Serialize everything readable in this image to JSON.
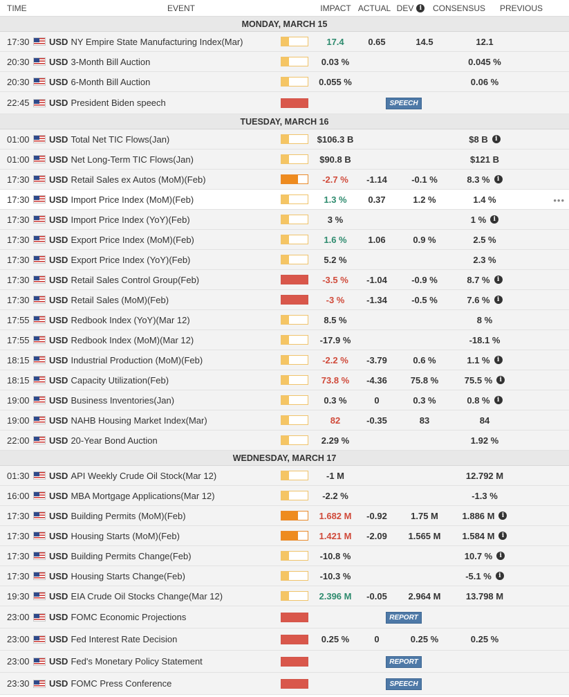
{
  "header": {
    "time": "TIME",
    "event": "EVENT",
    "impact": "IMPACT",
    "actual": "ACTUAL",
    "dev": "DEV",
    "consensus": "CONSENSUS",
    "previous": "PREVIOUS"
  },
  "days": [
    {
      "label": "MONDAY, MARCH 15"
    },
    {
      "label": "TUESDAY, MARCH 16"
    },
    {
      "label": "WEDNESDAY, MARCH 17"
    }
  ],
  "rows": [
    {
      "time": "17:30",
      "cur": "USD",
      "event": "NY Empire State Manufacturing Index(Mar)",
      "impact": "low",
      "actual": "17.4",
      "actual_tone": "pos",
      "dev": "0.65",
      "consensus": "14.5",
      "previous": "12.1",
      "prev_info": false
    },
    {
      "time": "20:30",
      "cur": "USD",
      "event": "3-Month Bill Auction",
      "impact": "low",
      "actual": "0.03 %",
      "actual_tone": "neutral",
      "dev": "",
      "consensus": "",
      "previous": "0.045 %",
      "prev_info": false
    },
    {
      "time": "20:30",
      "cur": "USD",
      "event": "6-Month Bill Auction",
      "impact": "low",
      "actual": "0.055 %",
      "actual_tone": "neutral",
      "dev": "",
      "consensus": "",
      "previous": "0.06 %",
      "prev_info": false
    },
    {
      "time": "22:45",
      "cur": "USD",
      "event": "President Biden speech",
      "impact": "high",
      "tag": "SPEECH"
    },
    {
      "time": "01:00",
      "cur": "USD",
      "event": "Total Net TIC Flows(Jan)",
      "impact": "low",
      "actual": "$106.3 B",
      "actual_tone": "neutral",
      "dev": "",
      "consensus": "",
      "previous": "$8 B",
      "prev_info": true
    },
    {
      "time": "01:00",
      "cur": "USD",
      "event": "Net Long-Term TIC Flows(Jan)",
      "impact": "low",
      "actual": "$90.8 B",
      "actual_tone": "neutral",
      "dev": "",
      "consensus": "",
      "previous": "$121 B",
      "prev_info": false
    },
    {
      "time": "17:30",
      "cur": "USD",
      "event": "Retail Sales ex Autos (MoM)(Feb)",
      "impact": "med",
      "actual": "-2.7 %",
      "actual_tone": "neg",
      "dev": "-1.14",
      "consensus": "-0.1 %",
      "previous": "8.3 %",
      "prev_info": true
    },
    {
      "time": "17:30",
      "cur": "USD",
      "event": "Import Price Index (MoM)(Feb)",
      "impact": "low",
      "actual": "1.3 %",
      "actual_tone": "pos",
      "dev": "0.37",
      "consensus": "1.2 %",
      "previous": "1.4 %",
      "prev_info": false,
      "highlight": true,
      "more": "•••"
    },
    {
      "time": "17:30",
      "cur": "USD",
      "event": "Import Price Index (YoY)(Feb)",
      "impact": "low",
      "actual": "3 %",
      "actual_tone": "neutral",
      "dev": "",
      "consensus": "",
      "previous": "1 %",
      "prev_info": true
    },
    {
      "time": "17:30",
      "cur": "USD",
      "event": "Export Price Index (MoM)(Feb)",
      "impact": "low",
      "actual": "1.6 %",
      "actual_tone": "pos",
      "dev": "1.06",
      "consensus": "0.9 %",
      "previous": "2.5 %",
      "prev_info": false
    },
    {
      "time": "17:30",
      "cur": "USD",
      "event": "Export Price Index (YoY)(Feb)",
      "impact": "low",
      "actual": "5.2 %",
      "actual_tone": "neutral",
      "dev": "",
      "consensus": "",
      "previous": "2.3 %",
      "prev_info": false
    },
    {
      "time": "17:30",
      "cur": "USD",
      "event": "Retail Sales Control Group(Feb)",
      "impact": "high",
      "actual": "-3.5 %",
      "actual_tone": "neg",
      "dev": "-1.04",
      "consensus": "-0.9 %",
      "previous": "8.7 %",
      "prev_info": true
    },
    {
      "time": "17:30",
      "cur": "USD",
      "event": "Retail Sales (MoM)(Feb)",
      "impact": "high",
      "actual": "-3 %",
      "actual_tone": "neg",
      "dev": "-1.34",
      "consensus": "-0.5 %",
      "previous": "7.6 %",
      "prev_info": true
    },
    {
      "time": "17:55",
      "cur": "USD",
      "event": "Redbook Index (YoY)(Mar 12)",
      "impact": "low",
      "actual": "8.5 %",
      "actual_tone": "neutral",
      "dev": "",
      "consensus": "",
      "previous": "8 %",
      "prev_info": false
    },
    {
      "time": "17:55",
      "cur": "USD",
      "event": "Redbook Index (MoM)(Mar 12)",
      "impact": "low",
      "actual": "-17.9 %",
      "actual_tone": "neutral",
      "dev": "",
      "consensus": "",
      "previous": "-18.1 %",
      "prev_info": false
    },
    {
      "time": "18:15",
      "cur": "USD",
      "event": "Industrial Production (MoM)(Feb)",
      "impact": "low",
      "actual": "-2.2 %",
      "actual_tone": "neg",
      "dev": "-3.79",
      "consensus": "0.6 %",
      "previous": "1.1 %",
      "prev_info": true
    },
    {
      "time": "18:15",
      "cur": "USD",
      "event": "Capacity Utilization(Feb)",
      "impact": "low",
      "actual": "73.8 %",
      "actual_tone": "neg",
      "dev": "-4.36",
      "consensus": "75.8 %",
      "previous": "75.5 %",
      "prev_info": true
    },
    {
      "time": "19:00",
      "cur": "USD",
      "event": "Business Inventories(Jan)",
      "impact": "low",
      "actual": "0.3 %",
      "actual_tone": "neutral",
      "dev": "0",
      "consensus": "0.3 %",
      "previous": "0.8 %",
      "prev_info": true
    },
    {
      "time": "19:00",
      "cur": "USD",
      "event": "NAHB Housing Market Index(Mar)",
      "impact": "low",
      "actual": "82",
      "actual_tone": "neg",
      "dev": "-0.35",
      "consensus": "83",
      "previous": "84",
      "prev_info": false
    },
    {
      "time": "22:00",
      "cur": "USD",
      "event": "20-Year Bond Auction",
      "impact": "low",
      "actual": "2.29 %",
      "actual_tone": "neutral",
      "dev": "",
      "consensus": "",
      "previous": "1.92 %",
      "prev_info": false
    },
    {
      "time": "01:30",
      "cur": "USD",
      "event": "API Weekly Crude Oil Stock(Mar 12)",
      "impact": "low",
      "actual": "-1 M",
      "actual_tone": "neutral",
      "dev": "",
      "consensus": "",
      "previous": "12.792 M",
      "prev_info": false
    },
    {
      "time": "16:00",
      "cur": "USD",
      "event": "MBA Mortgage Applications(Mar 12)",
      "impact": "low",
      "actual": "-2.2 %",
      "actual_tone": "neutral",
      "dev": "",
      "consensus": "",
      "previous": "-1.3 %",
      "prev_info": false
    },
    {
      "time": "17:30",
      "cur": "USD",
      "event": "Building Permits (MoM)(Feb)",
      "impact": "med",
      "actual": "1.682 M",
      "actual_tone": "neg",
      "dev": "-0.92",
      "consensus": "1.75 M",
      "previous": "1.886 M",
      "prev_info": true
    },
    {
      "time": "17:30",
      "cur": "USD",
      "event": "Housing Starts (MoM)(Feb)",
      "impact": "med",
      "actual": "1.421 M",
      "actual_tone": "neg",
      "dev": "-2.09",
      "consensus": "1.565 M",
      "previous": "1.584 M",
      "prev_info": true
    },
    {
      "time": "17:30",
      "cur": "USD",
      "event": "Building Permits Change(Feb)",
      "impact": "low",
      "actual": "-10.8 %",
      "actual_tone": "neutral",
      "dev": "",
      "consensus": "",
      "previous": "10.7 %",
      "prev_info": true
    },
    {
      "time": "17:30",
      "cur": "USD",
      "event": "Housing Starts Change(Feb)",
      "impact": "low",
      "actual": "-10.3 %",
      "actual_tone": "neutral",
      "dev": "",
      "consensus": "",
      "previous": "-5.1 %",
      "prev_info": true
    },
    {
      "time": "19:30",
      "cur": "USD",
      "event": "EIA Crude Oil Stocks Change(Mar 12)",
      "impact": "low",
      "actual": "2.396 M",
      "actual_tone": "pos",
      "dev": "-0.05",
      "consensus": "2.964 M",
      "previous": "13.798 M",
      "prev_info": false
    },
    {
      "time": "23:00",
      "cur": "USD",
      "event": "FOMC Economic Projections",
      "impact": "high",
      "tag": "REPORT"
    },
    {
      "time": "23:00",
      "cur": "USD",
      "event": "Fed Interest Rate Decision",
      "impact": "high",
      "actual": "0.25 %",
      "actual_tone": "neutral",
      "dev": "0",
      "consensus": "0.25 %",
      "previous": "0.25 %",
      "prev_info": false
    },
    {
      "time": "23:00",
      "cur": "USD",
      "event": "Fed's Monetary Policy Statement",
      "impact": "high",
      "tag": "REPORT"
    },
    {
      "time": "23:30",
      "cur": "USD",
      "event": "FOMC Press Conference",
      "impact": "high",
      "tag": "SPEECH"
    }
  ],
  "layout": {
    "day_breaks": [
      0,
      4,
      20
    ],
    "tall_rows": [
      3,
      27,
      28,
      29,
      30
    ]
  }
}
